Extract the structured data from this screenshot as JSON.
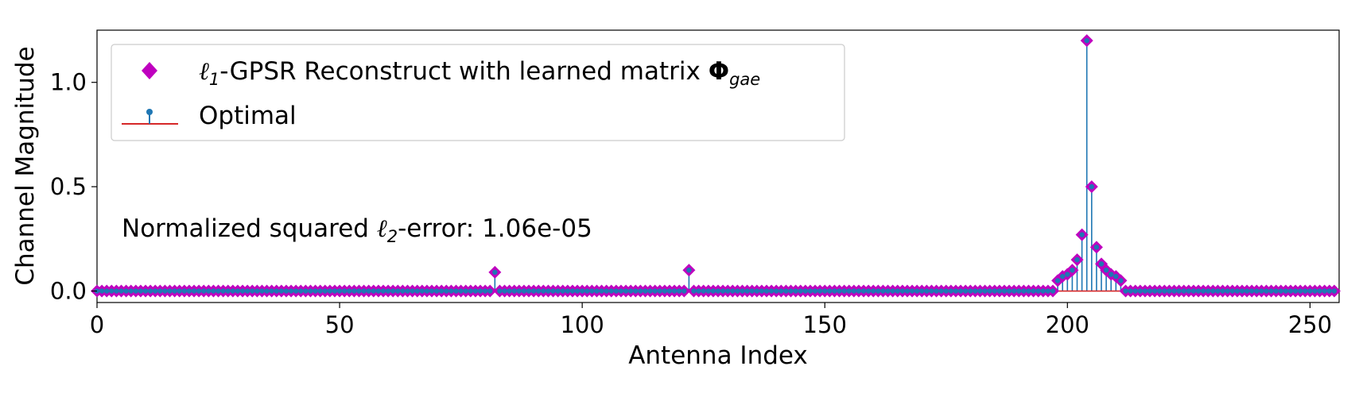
{
  "chart_data": {
    "type": "scatter",
    "xlabel": "Antenna Index",
    "ylabel": "Channel Magnitude",
    "xlim": [
      0,
      256
    ],
    "ylim": [
      -0.055,
      1.25
    ],
    "xticks": [
      0,
      50,
      100,
      150,
      200,
      250
    ],
    "xtick_labels": [
      "0",
      "50",
      "100",
      "150",
      "200",
      "250"
    ],
    "yticks": [
      0.0,
      0.5,
      1.0
    ],
    "ytick_labels": [
      "0.0",
      "0.5",
      "1.0"
    ],
    "grid": false,
    "legend_position": "top-left",
    "n_points": 256,
    "nonzero": [
      {
        "x": 82,
        "y": 0.09
      },
      {
        "x": 122,
        "y": 0.1
      },
      {
        "x": 198,
        "y": 0.05
      },
      {
        "x": 199,
        "y": 0.07
      },
      {
        "x": 200,
        "y": 0.08
      },
      {
        "x": 201,
        "y": 0.1
      },
      {
        "x": 202,
        "y": 0.15
      },
      {
        "x": 203,
        "y": 0.27
      },
      {
        "x": 204,
        "y": 1.2
      },
      {
        "x": 205,
        "y": 0.5
      },
      {
        "x": 206,
        "y": 0.21
      },
      {
        "x": 207,
        "y": 0.13
      },
      {
        "x": 208,
        "y": 0.1
      },
      {
        "x": 209,
        "y": 0.08
      },
      {
        "x": 210,
        "y": 0.07
      },
      {
        "x": 211,
        "y": 0.05
      }
    ],
    "series": [
      {
        "name": "ℓ1-GPSR Reconstruct with learned matrix Φgae",
        "marker": "diamond",
        "color": "#bf00bf"
      },
      {
        "name": "Optimal",
        "marker": "stem",
        "color": "#1f77b4",
        "baseline_color": "#d62728"
      }
    ],
    "legend": {
      "recon_label_prefix": "ℓ",
      "recon_label_sub": "1",
      "recon_label_main": "-GPSR Reconstruct with learned matrix ",
      "recon_label_phi": "Φ",
      "recon_label_phi_sub": "gae",
      "optimal_label": "Optimal"
    },
    "annotation": {
      "prefix": "Normalized squared ",
      "ell": "ℓ",
      "ell_sub": "2",
      "suffix": "-error: 1.06e-05"
    },
    "colors": {
      "stem": "#1f77b4",
      "marker": "#bf00bf",
      "baseline": "#d62728"
    }
  }
}
